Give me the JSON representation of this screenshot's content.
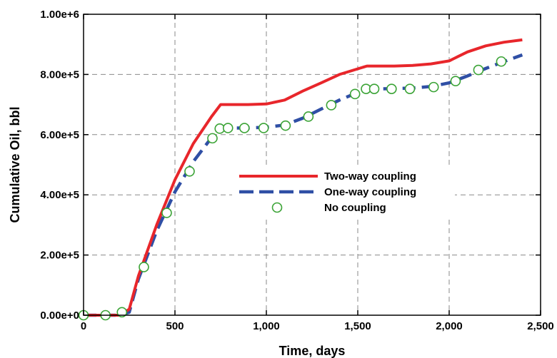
{
  "chart_data": {
    "type": "line",
    "title": "",
    "xlabel": "Time, days",
    "ylabel": "Cumulative Oil, bbl",
    "xlim": [
      0,
      2500
    ],
    "ylim": [
      0,
      1000000
    ],
    "x_ticks": [
      0,
      500,
      1000,
      1500,
      2000,
      2500
    ],
    "x_tick_labels": [
      "0",
      "500",
      "1,000",
      "1,500",
      "2,000",
      "2,500"
    ],
    "y_ticks": [
      0,
      200000,
      400000,
      600000,
      800000,
      1000000
    ],
    "y_tick_labels": [
      "0.00e+0",
      "2.00e+5",
      "4.00e+5",
      "6.00e+5",
      "8.00e+5",
      "1.00e+6"
    ],
    "grid": true,
    "legend_position": "center-right",
    "series": [
      {
        "name": "Two-way coupling",
        "style": "solid-line",
        "color": "#e8262b",
        "x": [
          0,
          200,
          250,
          300,
          400,
          500,
          600,
          700,
          750,
          800,
          900,
          1000,
          1100,
          1200,
          1300,
          1400,
          1550,
          1700,
          1800,
          1900,
          2000,
          2050,
          2100,
          2200,
          2300,
          2400
        ],
        "y": [
          0,
          0,
          20000,
          130000,
          300000,
          450000,
          570000,
          660000,
          700000,
          700000,
          700000,
          702000,
          715000,
          745000,
          772000,
          800000,
          828000,
          828000,
          830000,
          835000,
          845000,
          860000,
          875000,
          895000,
          907000,
          915000
        ]
      },
      {
        "name": "One-way coupling",
        "style": "dashed-line",
        "color": "#2f4fa5",
        "x": [
          0,
          200,
          250,
          300,
          400,
          500,
          600,
          700,
          750,
          800,
          900,
          1000,
          1100,
          1200,
          1300,
          1400,
          1500,
          1550,
          1600,
          1700,
          1800,
          1900,
          2000,
          2100,
          2200,
          2300,
          2400
        ],
        "y": [
          0,
          0,
          10000,
          120000,
          280000,
          410000,
          510000,
          590000,
          620000,
          622000,
          622000,
          625000,
          632000,
          655000,
          685000,
          715000,
          740000,
          752000,
          752000,
          753000,
          755000,
          760000,
          772000,
          795000,
          820000,
          843000,
          865000
        ]
      },
      {
        "name": "No coupling",
        "style": "open-circle",
        "color": "#3aa335",
        "x": [
          0,
          120,
          210,
          330,
          455,
          580,
          705,
          745,
          790,
          880,
          985,
          1105,
          1230,
          1355,
          1485,
          1545,
          1590,
          1685,
          1785,
          1915,
          2035,
          2160,
          2285
        ],
        "y": [
          0,
          0,
          10000,
          160000,
          340000,
          478000,
          588000,
          620000,
          622000,
          622000,
          622000,
          630000,
          660000,
          698000,
          735000,
          752000,
          752000,
          752000,
          752000,
          758000,
          778000,
          815000,
          843000
        ]
      }
    ]
  }
}
